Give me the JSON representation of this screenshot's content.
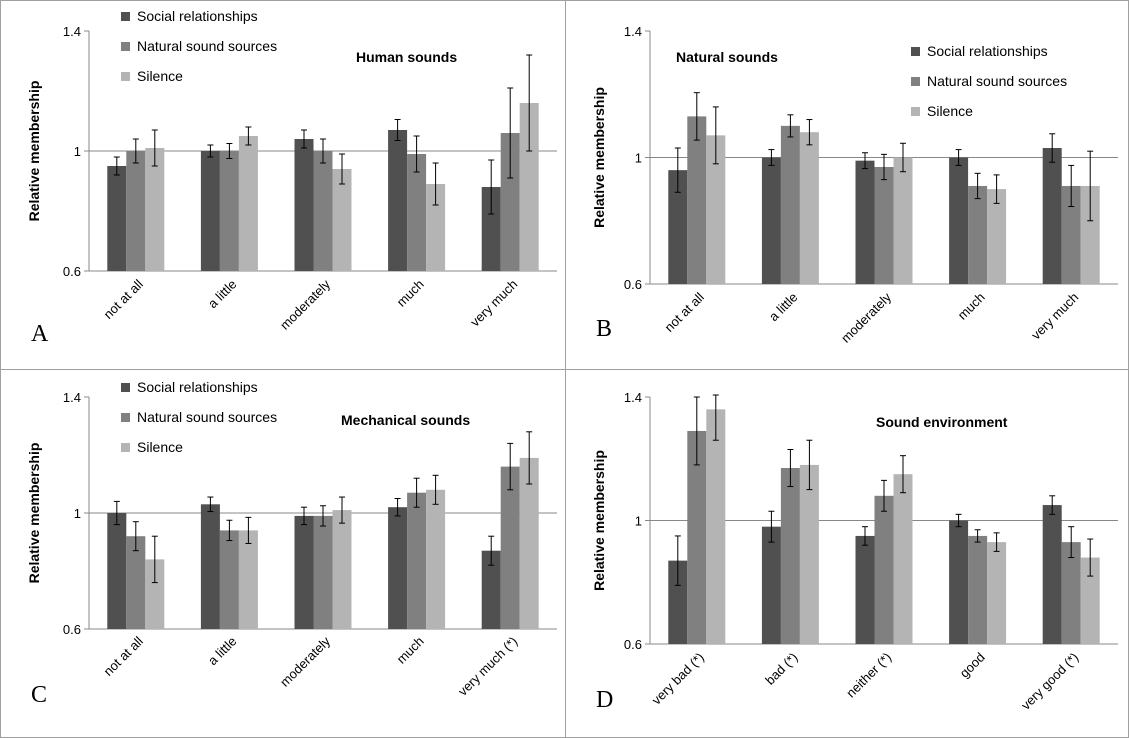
{
  "colors": {
    "social": "#505050",
    "natural": "#808080",
    "silence": "#b4b4b4"
  },
  "chart_data": [
    {
      "type": "bar",
      "panel_label": "A",
      "title": "Human sounds",
      "ylabel": "Relative membership",
      "ylim": [
        0.6,
        1.4
      ],
      "yticks": [
        "0.6",
        "1",
        "1.4"
      ],
      "categories": [
        "not at all",
        "a little",
        "moderately",
        "much",
        "very much"
      ],
      "series": [
        {
          "name": "Social relationships",
          "values": [
            0.95,
            1.0,
            1.04,
            1.07,
            0.88
          ],
          "errors": [
            0.03,
            0.02,
            0.03,
            0.035,
            0.09
          ]
        },
        {
          "name": "Natural sound sources",
          "values": [
            1.0,
            1.0,
            1.0,
            0.99,
            1.06
          ],
          "errors": [
            0.04,
            0.025,
            0.04,
            0.06,
            0.15
          ]
        },
        {
          "name": "Silence",
          "values": [
            1.01,
            1.05,
            0.94,
            0.89,
            1.16
          ],
          "errors": [
            0.06,
            0.03,
            0.05,
            0.07,
            0.16
          ]
        }
      ]
    },
    {
      "type": "bar",
      "panel_label": "B",
      "title": "Natural sounds",
      "ylabel": "Relative membership",
      "ylim": [
        0.6,
        1.4
      ],
      "yticks": [
        "0.6",
        "1",
        "1.4"
      ],
      "categories": [
        "not at all",
        "a little",
        "moderately",
        "much",
        "very much"
      ],
      "series": [
        {
          "name": "Social relationships",
          "values": [
            0.96,
            1.0,
            0.99,
            1.0,
            1.03
          ],
          "errors": [
            0.07,
            0.025,
            0.025,
            0.025,
            0.045
          ]
        },
        {
          "name": "Natural sound sources",
          "values": [
            1.13,
            1.1,
            0.97,
            0.91,
            0.91
          ],
          "errors": [
            0.075,
            0.035,
            0.04,
            0.04,
            0.065
          ]
        },
        {
          "name": "Silence",
          "values": [
            1.07,
            1.08,
            1.0,
            0.9,
            0.91
          ],
          "errors": [
            0.09,
            0.04,
            0.045,
            0.045,
            0.11
          ]
        }
      ]
    },
    {
      "type": "bar",
      "panel_label": "C",
      "title": "Mechanical sounds",
      "ylabel": "Relative membership",
      "ylim": [
        0.6,
        1.4
      ],
      "yticks": [
        "0.6",
        "1",
        "1.4"
      ],
      "categories": [
        "not at all",
        "a little",
        "moderately",
        "much",
        "very much (*)"
      ],
      "series": [
        {
          "name": "Social relationships",
          "values": [
            1.0,
            1.03,
            0.99,
            1.02,
            0.87
          ],
          "errors": [
            0.04,
            0.025,
            0.03,
            0.03,
            0.05
          ]
        },
        {
          "name": "Natural sound sources",
          "values": [
            0.92,
            0.94,
            0.99,
            1.07,
            1.16
          ],
          "errors": [
            0.05,
            0.035,
            0.035,
            0.05,
            0.08
          ]
        },
        {
          "name": "Silence",
          "values": [
            0.84,
            0.94,
            1.01,
            1.08,
            1.19
          ],
          "errors": [
            0.08,
            0.045,
            0.045,
            0.05,
            0.09
          ]
        }
      ]
    },
    {
      "type": "bar",
      "panel_label": "D",
      "title": "Sound environment",
      "ylabel": "Relative membership",
      "ylim": [
        0.6,
        1.4
      ],
      "yticks": [
        "0.6",
        "1",
        "1.4"
      ],
      "categories": [
        "very bad (*)",
        "bad (*)",
        "neither (*)",
        "good",
        "very good (*)"
      ],
      "series": [
        {
          "name": "Social relationships",
          "values": [
            0.87,
            0.98,
            0.95,
            1.0,
            1.05
          ],
          "errors": [
            0.08,
            0.05,
            0.03,
            0.02,
            0.03
          ]
        },
        {
          "name": "Natural sound sources",
          "values": [
            1.29,
            1.17,
            1.08,
            0.95,
            0.93
          ],
          "errors": [
            0.11,
            0.06,
            0.05,
            0.02,
            0.05
          ]
        },
        {
          "name": "Silence",
          "values": [
            1.36,
            1.18,
            1.15,
            0.93,
            0.88
          ],
          "errors": [
            0.1,
            0.08,
            0.06,
            0.03,
            0.06
          ]
        }
      ]
    }
  ]
}
